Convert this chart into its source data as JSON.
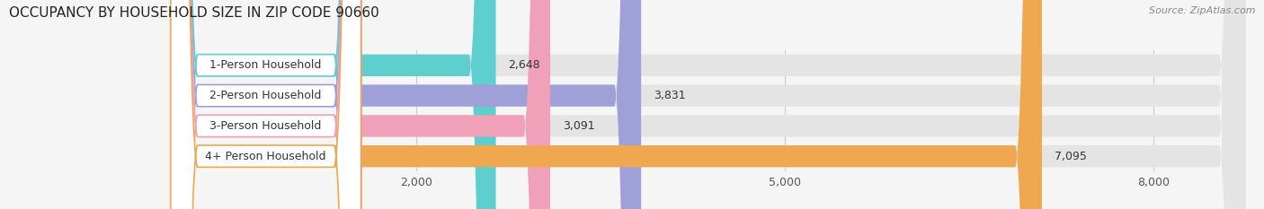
{
  "title": "OCCUPANCY BY HOUSEHOLD SIZE IN ZIP CODE 90660",
  "source": "Source: ZipAtlas.com",
  "categories": [
    "1-Person Household",
    "2-Person Household",
    "3-Person Household",
    "4+ Person Household"
  ],
  "values": [
    2648,
    3831,
    3091,
    7095
  ],
  "bar_colors": [
    "#5ecece",
    "#a0a0d8",
    "#f0a0b8",
    "#f0a850"
  ],
  "label_bg_color": "#ffffff",
  "xlim_max": 8800,
  "xticks": [
    2000,
    5000,
    8000
  ],
  "xtick_labels": [
    "2,000",
    "5,000",
    "8,000"
  ],
  "background_color": "#f5f5f5",
  "bar_bg_color": "#e4e4e4",
  "title_fontsize": 11,
  "source_fontsize": 8,
  "tick_fontsize": 9,
  "label_fontsize": 9,
  "value_fontsize": 9,
  "figsize": [
    14.06,
    2.33
  ],
  "dpi": 100
}
